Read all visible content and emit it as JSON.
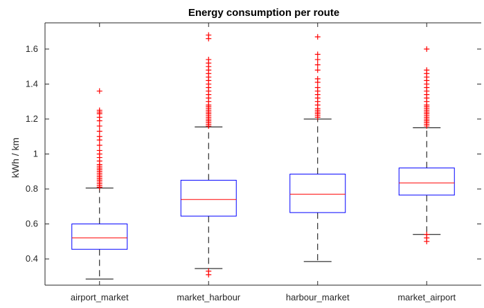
{
  "chart_data": {
    "type": "box",
    "title": "Energy consumption per route",
    "xlabel": "",
    "ylabel": "kWh / km",
    "ylim": [
      0.25,
      1.75
    ],
    "yticks": [
      0.4,
      0.6,
      0.8,
      1,
      1.2,
      1.4,
      1.6
    ],
    "ytick_labels": [
      "0.4",
      "0.6",
      "0.8",
      "1",
      "1.2",
      "1.4",
      "1.6"
    ],
    "grid": false,
    "categories": [
      "airport_market",
      "market_harbour",
      "harbour_market",
      "market_airport"
    ],
    "boxes": [
      {
        "category": "airport_market",
        "whisker_low": 0.285,
        "q1": 0.455,
        "median": 0.52,
        "q3": 0.6,
        "whisker_high": 0.805,
        "outliers": [
          0.81,
          0.82,
          0.83,
          0.84,
          0.85,
          0.86,
          0.87,
          0.88,
          0.89,
          0.9,
          0.91,
          0.92,
          0.93,
          0.94,
          0.96,
          0.98,
          1.0,
          1.02,
          1.05,
          1.08,
          1.1,
          1.13,
          1.16,
          1.19,
          1.21,
          1.23,
          1.24,
          1.25,
          1.36
        ]
      },
      {
        "category": "market_harbour",
        "whisker_low": 0.345,
        "q1": 0.645,
        "median": 0.74,
        "q3": 0.85,
        "whisker_high": 1.155,
        "outliers": [
          0.31,
          0.33,
          1.16,
          1.17,
          1.18,
          1.19,
          1.2,
          1.21,
          1.22,
          1.23,
          1.24,
          1.25,
          1.26,
          1.27,
          1.28,
          1.3,
          1.32,
          1.34,
          1.36,
          1.38,
          1.4,
          1.42,
          1.44,
          1.46,
          1.48,
          1.5,
          1.52,
          1.54,
          1.66,
          1.68
        ]
      },
      {
        "category": "harbour_market",
        "whisker_low": 0.385,
        "q1": 0.665,
        "median": 0.77,
        "q3": 0.885,
        "whisker_high": 1.2,
        "outliers": [
          1.21,
          1.22,
          1.23,
          1.24,
          1.25,
          1.26,
          1.28,
          1.3,
          1.32,
          1.34,
          1.36,
          1.38,
          1.41,
          1.43,
          1.48,
          1.51,
          1.54,
          1.57,
          1.67
        ]
      },
      {
        "category": "market_airport",
        "whisker_low": 0.54,
        "q1": 0.765,
        "median": 0.835,
        "q3": 0.92,
        "whisker_high": 1.15,
        "outliers": [
          0.5,
          0.52,
          0.54,
          1.16,
          1.17,
          1.18,
          1.19,
          1.2,
          1.21,
          1.22,
          1.23,
          1.24,
          1.25,
          1.26,
          1.27,
          1.28,
          1.3,
          1.32,
          1.34,
          1.36,
          1.38,
          1.4,
          1.42,
          1.44,
          1.46,
          1.48,
          1.6
        ]
      }
    ],
    "colors": {
      "box": "#0000ff",
      "median": "#ff0000",
      "whisker": "#000000",
      "outlier": "#ff0000",
      "axis": "#262626"
    }
  }
}
